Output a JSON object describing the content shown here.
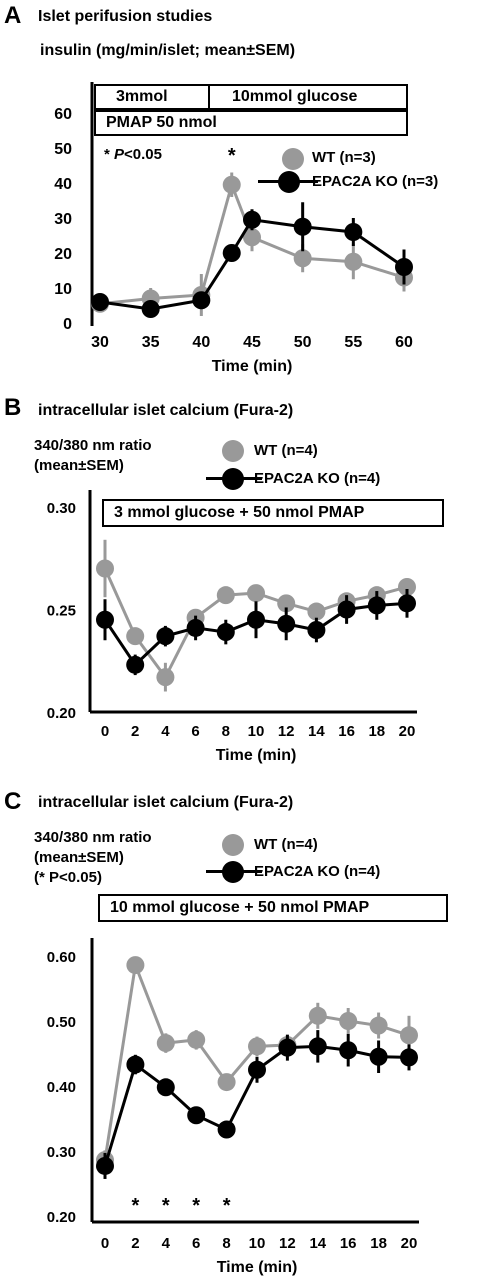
{
  "panels": {
    "A": {
      "label": "A",
      "title": "Islet perifusion studies",
      "subtitle": "insulin (mg/min/islet; mean±SEM)",
      "box_left": "3mmol",
      "box_right": "10mmol glucose",
      "box_bottom": "PMAP 50 nmol",
      "sig_note": "* P<0.05",
      "sig_note_star": "* ",
      "sig_note_p": "P",
      "sig_note_rest": "<0.05",
      "legend_wt": "WT (n=3)",
      "legend_ko": "EPAC2A KO (n=3)"
    },
    "B": {
      "label": "B",
      "title": "intracellular islet calcium (Fura-2)",
      "sub1": "340/380 nm ratio",
      "sub2": "(mean±SEM)",
      "box": "3 mmol glucose + 50 nmol PMAP",
      "legend_wt": "WT (n=4)",
      "legend_ko": "EPAC2A KO (n=4)"
    },
    "C": {
      "label": "C",
      "title": "intracellular islet calcium (Fura-2)",
      "sub1": "340/380 nm ratio",
      "sub2": "(mean±SEM)",
      "sub3": "(* P<0.05)",
      "box": "10 mmol glucose + 50 nmol PMAP",
      "legend_wt": "WT (n=4)",
      "legend_ko": "EPAC2A KO (n=4)"
    }
  },
  "colors": {
    "wt": "#999999",
    "ko": "#000000"
  },
  "chart_data": [
    {
      "type": "line",
      "xlabel": "Time (min)",
      "xticks": [
        30,
        35,
        40,
        45,
        50,
        55,
        60
      ],
      "yticks": [
        0,
        10,
        20,
        30,
        40,
        50,
        60
      ],
      "xlim": [
        30,
        60
      ],
      "ylim": [
        0,
        60
      ],
      "significance_x": [
        43
      ],
      "significance_marker": "*",
      "series": [
        {
          "name": "WT (n=3)",
          "x": [
            30,
            35,
            40,
            43,
            45,
            50,
            55,
            60
          ],
          "y": [
            5.5,
            7,
            8,
            39.5,
            24.5,
            18.5,
            17.5,
            13
          ],
          "err": [
            1.5,
            3,
            6,
            3.5,
            4,
            4,
            5,
            4
          ]
        },
        {
          "name": "EPAC2A KO (n=3)",
          "x": [
            30,
            35,
            40,
            43,
            45,
            50,
            55,
            60
          ],
          "y": [
            6,
            4,
            6.5,
            20,
            29.5,
            27.5,
            26,
            16
          ],
          "err": [
            2,
            2,
            1.5,
            2,
            3,
            7,
            4,
            5
          ]
        }
      ]
    },
    {
      "type": "line",
      "xlabel": "Time (min)",
      "xticks": [
        0,
        2,
        4,
        6,
        8,
        10,
        12,
        14,
        16,
        18,
        20
      ],
      "yticks": [
        0.2,
        0.25,
        0.3
      ],
      "ytick_labels": [
        "0.20",
        "0.25",
        "0.30"
      ],
      "xlim": [
        0,
        20
      ],
      "ylim": [
        0.2,
        0.3
      ],
      "series": [
        {
          "name": "WT (n=4)",
          "x": [
            0,
            2,
            4,
            6,
            8,
            10,
            12,
            14,
            16,
            18,
            20
          ],
          "y": [
            0.27,
            0.237,
            0.217,
            0.246,
            0.257,
            0.258,
            0.253,
            0.249,
            0.254,
            0.257,
            0.261
          ],
          "err": [
            0.014,
            0.004,
            0.007,
            0.004,
            0.003,
            0.003,
            0.004,
            0.004,
            0.004,
            0.004,
            0.004
          ]
        },
        {
          "name": "EPAC2A KO (n=4)",
          "x": [
            0,
            2,
            4,
            6,
            8,
            10,
            12,
            14,
            16,
            18,
            20
          ],
          "y": [
            0.245,
            0.223,
            0.237,
            0.241,
            0.239,
            0.245,
            0.243,
            0.24,
            0.25,
            0.252,
            0.253
          ],
          "err": [
            0.01,
            0.005,
            0.005,
            0.006,
            0.006,
            0.009,
            0.008,
            0.006,
            0.007,
            0.007,
            0.007
          ]
        }
      ]
    },
    {
      "type": "line",
      "xlabel": "Time (min)",
      "xticks": [
        0,
        2,
        4,
        6,
        8,
        10,
        12,
        14,
        16,
        18,
        20
      ],
      "yticks": [
        0.2,
        0.3,
        0.4,
        0.5,
        0.6
      ],
      "ytick_labels": [
        "0.20",
        "0.30",
        "0.40",
        "0.50",
        "0.60"
      ],
      "xlim": [
        0,
        20
      ],
      "ylim": [
        0.2,
        0.6
      ],
      "significance_x": [
        2,
        4,
        6,
        8
      ],
      "significance_marker": "*",
      "series": [
        {
          "name": "WT (n=4)",
          "x": [
            0,
            2,
            4,
            6,
            8,
            10,
            12,
            14,
            16,
            18,
            20
          ],
          "y": [
            0.286,
            0.586,
            0.466,
            0.471,
            0.406,
            0.461,
            0.463,
            0.508,
            0.5,
            0.493,
            0.478
          ],
          "err": [
            0.015,
            0.01,
            0.015,
            0.015,
            0.01,
            0.015,
            0.015,
            0.02,
            0.02,
            0.02,
            0.03
          ]
        },
        {
          "name": "EPAC2A KO (n=4)",
          "x": [
            0,
            2,
            4,
            6,
            8,
            10,
            12,
            14,
            16,
            18,
            20
          ],
          "y": [
            0.277,
            0.433,
            0.398,
            0.355,
            0.333,
            0.425,
            0.459,
            0.461,
            0.455,
            0.445,
            0.444
          ],
          "err": [
            0.02,
            0.015,
            0.01,
            0.01,
            0.01,
            0.02,
            0.02,
            0.025,
            0.025,
            0.025,
            0.02
          ]
        }
      ]
    }
  ]
}
